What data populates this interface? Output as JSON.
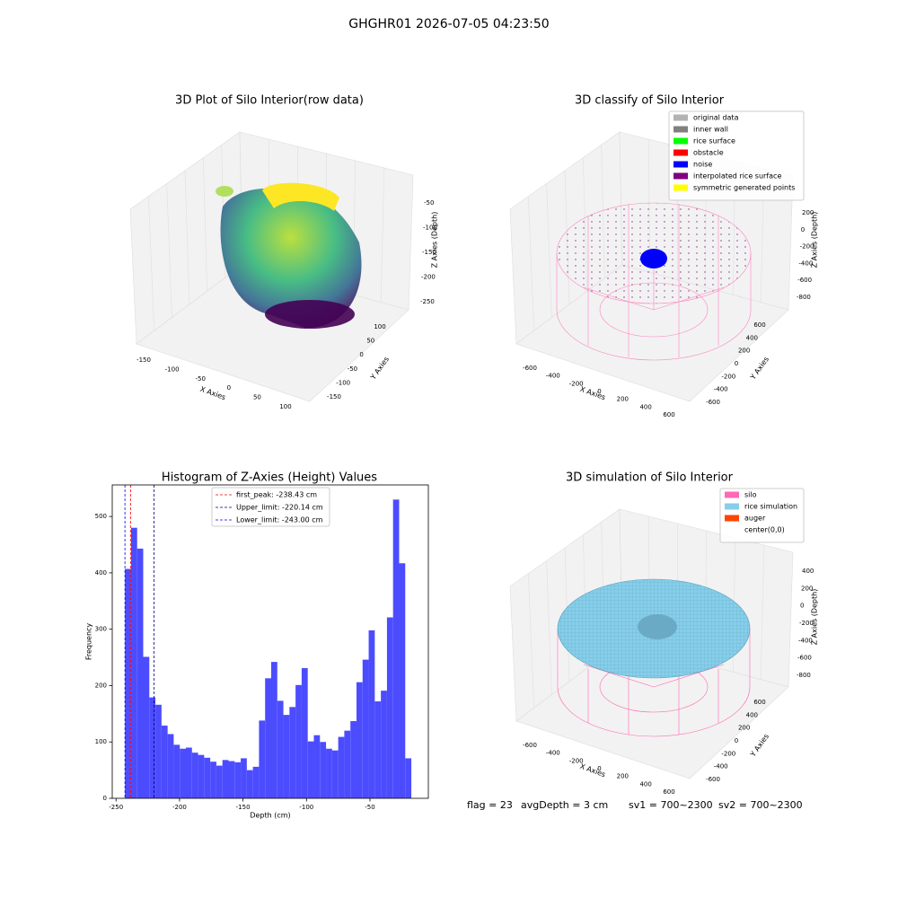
{
  "title": "GHGHR01 2026-07-05 04:23:50",
  "status": [
    "flag = 23",
    "avgDepth = 3 cm",
    "sv1 = 700~2300",
    "sv2 = 700~2300"
  ],
  "chart_data": [
    {
      "type": "scatter3d",
      "title": "3D Plot of Silo Interior(row data)",
      "xlabel": "X Axies",
      "ylabel": "Y Axies",
      "zlabel": "Z Axies (Depth)",
      "xticks": [
        -150,
        -100,
        -50,
        0,
        50,
        100
      ],
      "yticks": [
        -150,
        -100,
        -50,
        0,
        50,
        100
      ],
      "zticks": [
        -50,
        -100,
        -150,
        -200,
        -250
      ]
    },
    {
      "type": "scatter3d",
      "title": "3D classify of Silo Interior",
      "xlabel": "X Axies",
      "ylabel": "Y Axies",
      "zlabel": "Z Axies (Depth)",
      "xticks": [
        -600,
        -400,
        -200,
        0,
        200,
        400,
        600
      ],
      "yticks": [
        -600,
        -400,
        -200,
        0,
        200,
        400,
        600
      ],
      "zticks": [
        200,
        0,
        -200,
        -400,
        -600,
        -800
      ],
      "legend": [
        {
          "name": "original data",
          "color": "#b3b3b3"
        },
        {
          "name": "inner wall",
          "color": "#808080"
        },
        {
          "name": "rice surface",
          "color": "#00ff00"
        },
        {
          "name": "obstacle",
          "color": "#ff0000"
        },
        {
          "name": "noise",
          "color": "#0000ff"
        },
        {
          "name": "interpolated rice surface",
          "color": "#800080"
        },
        {
          "name": "symmetric generated points",
          "color": "#ffff00"
        }
      ]
    },
    {
      "type": "histogram",
      "title": "Histogram of Z-Axies (Height) Values",
      "xlabel": "Depth (cm)",
      "ylabel": "Frequency",
      "color": "#4c4cff",
      "bins": [
        -243,
        -238.2,
        -233.4,
        -228.6,
        -223.8,
        -219,
        -214.2,
        -209.4,
        -204.6,
        -199.8,
        -195,
        -190.2,
        -185.4,
        -180.6,
        -175.8,
        -171,
        -166.2,
        -161.4,
        -156.6,
        -151.8,
        -147,
        -142.2,
        -137.4,
        -132.6,
        -127.8,
        -123,
        -118.2,
        -113.4,
        -108.6,
        -103.8,
        -99,
        -94.2,
        -89.4,
        -84.6,
        -79.8,
        -75,
        -70.2,
        -65.4,
        -60.6,
        -55.8,
        -51,
        -46.2,
        -41.4,
        -36.6,
        -31.8,
        -27,
        -22.2,
        -17.4
      ],
      "values": [
        407,
        480,
        443,
        251,
        179,
        166,
        129,
        114,
        95,
        88,
        90,
        81,
        77,
        72,
        65,
        58,
        68,
        66,
        64,
        71,
        50,
        56,
        138,
        213,
        242,
        173,
        148,
        162,
        201,
        231,
        101,
        112,
        100,
        88,
        85,
        109,
        120,
        137,
        206,
        246,
        298,
        172,
        191,
        321,
        530,
        417,
        71
      ],
      "xlim": [
        -253,
        -4
      ],
      "ylim": [
        0,
        556
      ],
      "xticks": [
        -250,
        -200,
        -150,
        -100,
        -50
      ],
      "yticks": [
        0,
        100,
        200,
        300,
        400,
        500
      ],
      "vlines": [
        {
          "label": "first_peak: -238.43 cm",
          "value": -238.43,
          "color": "#ff0000"
        },
        {
          "label": "Upper_limit: -220.14 cm",
          "value": -220.14,
          "color": "#000080"
        },
        {
          "label": "Lower_limit: -243.00 cm",
          "value": -243.0,
          "color": "#0000ff"
        }
      ]
    },
    {
      "type": "surface3d",
      "title": "3D simulation of Silo Interior",
      "xlabel": "X Axies",
      "ylabel": "Y Axies",
      "zlabel": "Z Axies (Depth)",
      "xticks": [
        -600,
        -400,
        -200,
        0,
        200,
        400,
        600
      ],
      "yticks": [
        -600,
        -400,
        -200,
        0,
        200,
        400,
        600
      ],
      "zticks": [
        400,
        200,
        0,
        -200,
        -400,
        -600,
        -800
      ],
      "legend": [
        {
          "name": "silo",
          "color": "#ff69b4"
        },
        {
          "name": "rice simulation",
          "color": "#87ceeb"
        },
        {
          "name": "auger",
          "color": "#ff4500"
        },
        {
          "name": "center(0,0)",
          "color": "#ffffff"
        }
      ]
    }
  ]
}
